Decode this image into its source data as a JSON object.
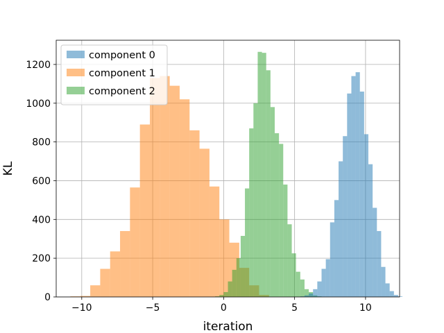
{
  "chart_data": {
    "type": "bar",
    "title": "",
    "xlabel": "iteration",
    "ylabel": "KL",
    "xlim": [
      -11.8,
      12.4
    ],
    "ylim": [
      0,
      1325
    ],
    "grid": true,
    "legend_position": "top-left",
    "x_ticks": [
      {
        "value": -10,
        "label": "−10"
      },
      {
        "value": -5,
        "label": "−5"
      },
      {
        "value": 0,
        "label": "0"
      },
      {
        "value": 5,
        "label": "5"
      },
      {
        "value": 10,
        "label": "10"
      }
    ],
    "y_ticks": [
      {
        "value": 0,
        "label": "0"
      },
      {
        "value": 200,
        "label": "200"
      },
      {
        "value": 400,
        "label": "400"
      },
      {
        "value": 600,
        "label": "600"
      },
      {
        "value": 800,
        "label": "800"
      },
      {
        "value": 1000,
        "label": "1000"
      },
      {
        "value": 1200,
        "label": "1200"
      }
    ],
    "series": [
      {
        "name": "component 1",
        "color": "#ff7f0e",
        "opacity": 0.5,
        "bin_start": -10.8,
        "bin_width": 0.7,
        "values": [
          3,
          5,
          60,
          145,
          235,
          340,
          565,
          890,
          1130,
          1140,
          1090,
          1020,
          860,
          765,
          570,
          400,
          280,
          150,
          60,
          10
        ]
      },
      {
        "name": "component 2",
        "color": "#2ca02c",
        "opacity": 0.5,
        "bin_start": -0.6,
        "bin_width": 0.3,
        "values": [
          3,
          10,
          25,
          80,
          140,
          200,
          315,
          560,
          870,
          1000,
          1265,
          1260,
          1170,
          980,
          845,
          790,
          580,
          375,
          225,
          130,
          90,
          40,
          25,
          8,
          3
        ]
      },
      {
        "name": "component 0",
        "color": "#1f77b4",
        "opacity": 0.5,
        "bin_start": 5.4,
        "bin_width": 0.3,
        "values": [
          3,
          8,
          18,
          40,
          80,
          145,
          195,
          385,
          500,
          700,
          830,
          1050,
          1140,
          1160,
          1060,
          840,
          685,
          460,
          340,
          155,
          70,
          30,
          10,
          3
        ]
      }
    ],
    "legend": [
      {
        "name": "component 0",
        "color": "#1f77b4"
      },
      {
        "name": "component 1",
        "color": "#ff7f0e"
      },
      {
        "name": "component 2",
        "color": "#2ca02c"
      }
    ]
  }
}
